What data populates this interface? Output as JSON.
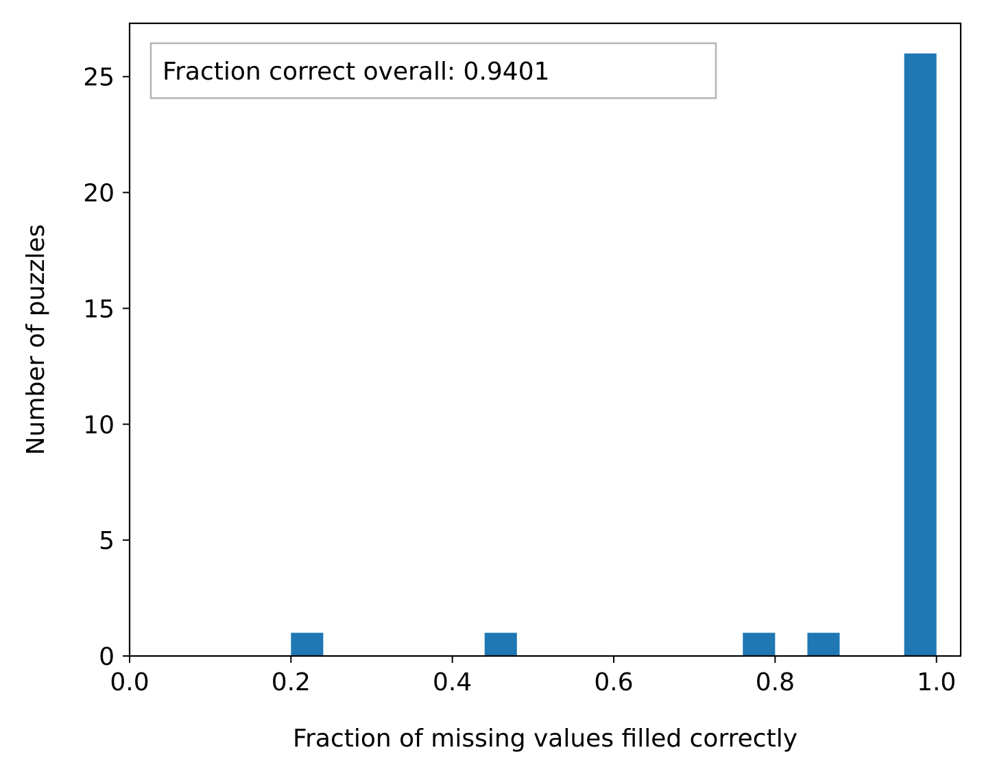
{
  "chart_data": {
    "type": "bar",
    "xlabel": "Fraction of missing values filled correctly",
    "ylabel": "Number of puzzles",
    "xlim": [
      0.0,
      1.03
    ],
    "ylim": [
      0,
      27.3
    ],
    "x_ticks": [
      0.0,
      0.2,
      0.4,
      0.6,
      0.8,
      1.0
    ],
    "x_tick_labels": [
      "0.0",
      "0.2",
      "0.4",
      "0.6",
      "0.8",
      "1.0"
    ],
    "y_ticks": [
      0,
      5,
      10,
      15,
      20,
      25
    ],
    "y_tick_labels": [
      "0",
      "5",
      "10",
      "15",
      "20",
      "25"
    ],
    "grid": false,
    "bar_color": "#1f77b4",
    "bins": [
      {
        "x0": 0.2,
        "x1": 0.24,
        "count": 1
      },
      {
        "x0": 0.44,
        "x1": 0.48,
        "count": 1
      },
      {
        "x0": 0.76,
        "x1": 0.8,
        "count": 1
      },
      {
        "x0": 0.84,
        "x1": 0.88,
        "count": 1
      },
      {
        "x0": 0.96,
        "x1": 1.0,
        "count": 26
      }
    ],
    "annotation": "Fraction correct overall: 0.9401",
    "annotation_position": "top-left"
  }
}
